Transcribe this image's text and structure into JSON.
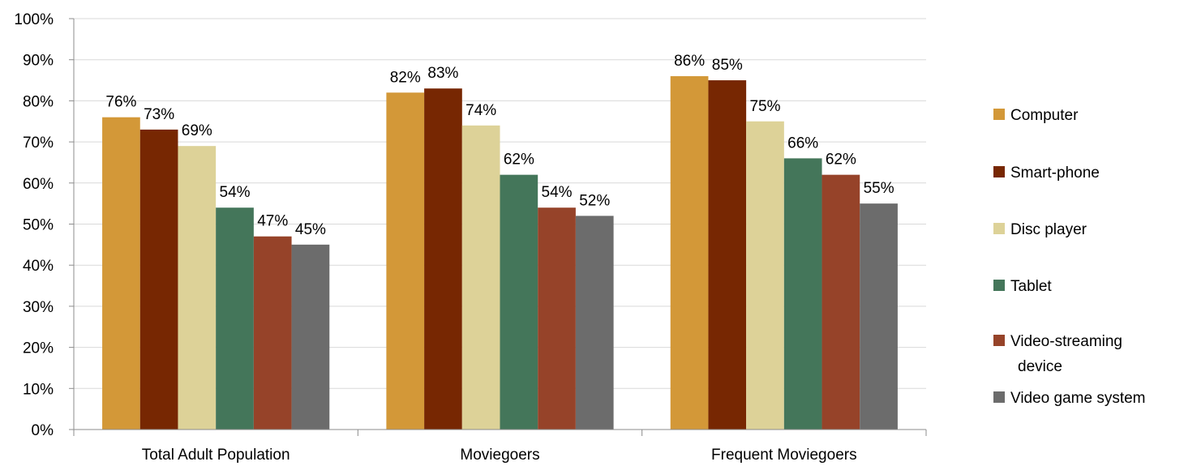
{
  "chart_data": {
    "type": "bar",
    "categories": [
      "Total Adult Population",
      "Moviegoers",
      "Frequent Moviegoers"
    ],
    "series": [
      {
        "name": "Computer",
        "values": [
          76,
          82,
          86
        ],
        "color": "#D39838"
      },
      {
        "name": "Smart-phone",
        "values": [
          73,
          83,
          85
        ],
        "color": "#772702"
      },
      {
        "name": "Disc player",
        "values": [
          69,
          74,
          75
        ],
        "color": "#DDD298"
      },
      {
        "name": "Tablet",
        "values": [
          54,
          62,
          66
        ],
        "color": "#44765A"
      },
      {
        "name": "Video-streaming device",
        "values": [
          47,
          54,
          62
        ],
        "color": "#964329"
      },
      {
        "name": "Video game system",
        "values": [
          45,
          52,
          55
        ],
        "color": "#6C6C6C"
      }
    ],
    "data_labels": [
      [
        "76%",
        "82%",
        "86%"
      ],
      [
        "73%",
        "83%",
        "85%"
      ],
      [
        "69%",
        "74%",
        "75%"
      ],
      [
        "54%",
        "62%",
        "66%"
      ],
      [
        "47%",
        "54%",
        "62%"
      ],
      [
        "45%",
        "52%",
        "55%"
      ]
    ],
    "ylim": [
      0,
      100
    ],
    "yticks": [
      0,
      10,
      20,
      30,
      40,
      50,
      60,
      70,
      80,
      90,
      100
    ],
    "ytick_labels": [
      "0%",
      "10%",
      "20%",
      "30%",
      "40%",
      "50%",
      "60%",
      "70%",
      "80%",
      "90%",
      "100%"
    ],
    "grid": true,
    "legend_position": "right",
    "legend_labels": [
      [
        "Computer"
      ],
      [
        "Smart-phone"
      ],
      [
        "Disc player"
      ],
      [
        "Tablet"
      ],
      [
        "Video-streaming",
        "device"
      ],
      [
        "Video game system"
      ]
    ],
    "title": "",
    "xlabel": "",
    "ylabel": ""
  }
}
